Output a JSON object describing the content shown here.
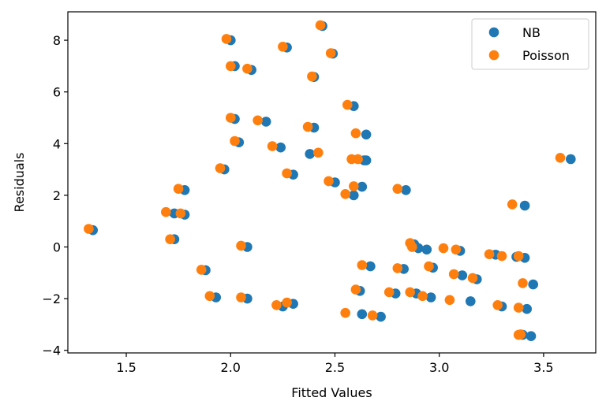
{
  "chart_data": {
    "type": "scatter",
    "xlabel": "Fitted Values",
    "ylabel": "Residuals",
    "xlim": [
      1.22,
      3.75
    ],
    "ylim": [
      -4.1,
      9.1
    ],
    "xticks": [
      1.5,
      2.0,
      2.5,
      3.0,
      3.5
    ],
    "xtick_labels": [
      "1.5",
      "2.0",
      "2.5",
      "3.0",
      "3.5"
    ],
    "yticks": [
      -4,
      -2,
      0,
      2,
      4,
      6,
      8
    ],
    "ytick_labels": [
      "−4",
      "−2",
      "0",
      "2",
      "4",
      "6",
      "8"
    ],
    "grid": false,
    "legend_position": "top-right",
    "series": [
      {
        "name": "NB",
        "color": "#1f77b4",
        "x": [
          1.34,
          1.73,
          1.78,
          2.0,
          2.02,
          2.1,
          2.27,
          2.44,
          2.49,
          2.02,
          2.17,
          2.4,
          2.59,
          2.65,
          2.4,
          2.64,
          2.65,
          2.63,
          2.84,
          3.41,
          1.73,
          2.88,
          1.78,
          2.9,
          1.88,
          2.83,
          2.94,
          3.1,
          3.45,
          3.63,
          3.37,
          3.27,
          3.18,
          2.08,
          2.3,
          2.24,
          2.04,
          2.5,
          2.59,
          2.38,
          1.97,
          2.62,
          2.79,
          2.96,
          3.15,
          3.42,
          1.93,
          2.3,
          2.08,
          2.25,
          2.63,
          2.72,
          2.67,
          2.89,
          2.97,
          3.11,
          3.3,
          3.41,
          3.44,
          3.4
        ],
        "y": [
          0.65,
          1.3,
          1.25,
          8.0,
          7.0,
          6.85,
          7.72,
          8.55,
          7.48,
          4.95,
          4.85,
          4.62,
          5.45,
          4.35,
          6.58,
          3.35,
          3.35,
          2.33,
          2.2,
          1.6,
          0.3,
          0.1,
          2.2,
          -0.05,
          -0.9,
          -0.85,
          -0.1,
          -0.15,
          -1.45,
          3.4,
          -0.38,
          -0.3,
          -1.25,
          0.0,
          2.8,
          3.85,
          4.05,
          2.5,
          2.0,
          3.6,
          3.0,
          -1.7,
          -1.8,
          -1.95,
          -2.1,
          -2.4,
          -1.95,
          -2.2,
          -2.0,
          -2.3,
          -2.6,
          -2.7,
          -0.75,
          -1.8,
          -0.8,
          -1.1,
          -2.3,
          -0.42,
          -3.45,
          -3.4
        ]
      },
      {
        "name": "Poisson",
        "color": "#ff7f0e",
        "x": [
          1.32,
          1.69,
          1.76,
          1.98,
          2.0,
          2.08,
          2.25,
          2.43,
          2.48,
          2.0,
          2.13,
          2.37,
          2.56,
          2.6,
          2.39,
          2.58,
          2.61,
          2.59,
          2.8,
          3.35,
          1.71,
          2.86,
          1.75,
          2.87,
          1.86,
          2.8,
          3.02,
          3.08,
          3.4,
          3.58,
          3.3,
          3.24,
          3.16,
          2.05,
          2.27,
          2.2,
          2.02,
          2.47,
          2.55,
          2.42,
          1.95,
          2.6,
          2.76,
          2.92,
          3.05,
          3.38,
          1.9,
          2.27,
          2.05,
          2.22,
          2.55,
          2.68,
          2.63,
          2.86,
          2.95,
          3.07,
          3.28,
          3.38,
          3.38,
          3.39
        ],
        "y": [
          0.7,
          1.35,
          1.3,
          8.05,
          7.0,
          6.9,
          7.75,
          8.58,
          7.5,
          5.0,
          4.9,
          4.65,
          5.5,
          4.4,
          6.6,
          3.4,
          3.4,
          2.35,
          2.25,
          1.65,
          0.3,
          0.15,
          2.25,
          0.0,
          -0.88,
          -0.82,
          -0.05,
          -0.1,
          -1.4,
          3.45,
          -0.35,
          -0.28,
          -1.2,
          0.05,
          2.85,
          3.9,
          4.1,
          2.55,
          2.05,
          3.65,
          3.05,
          -1.65,
          -1.75,
          -1.9,
          -2.05,
          -2.35,
          -1.9,
          -2.15,
          -1.95,
          -2.25,
          -2.55,
          -2.65,
          -0.7,
          -1.75,
          -0.75,
          -1.05,
          -2.25,
          -0.35,
          -3.4,
          -3.38
        ]
      }
    ]
  }
}
